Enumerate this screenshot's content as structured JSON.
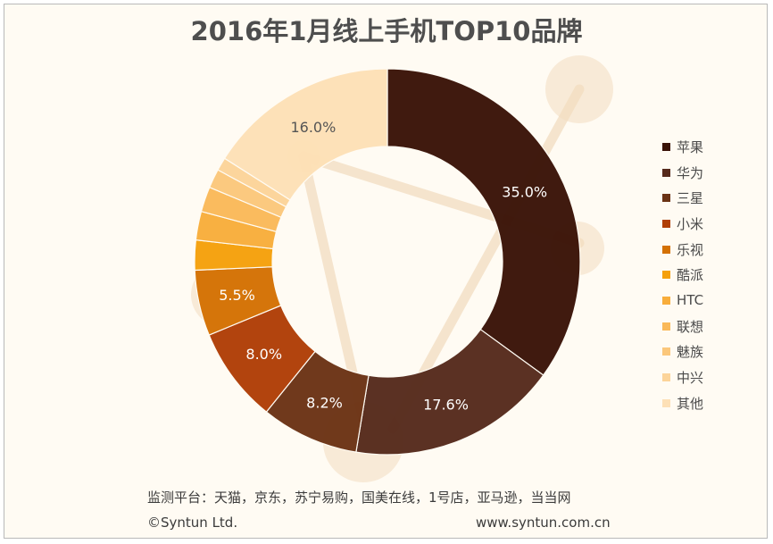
{
  "chart_data": {
    "type": "pie",
    "title": "2016年1月线上手机TOP10品牌",
    "categories": [
      "苹果",
      "华为",
      "三星",
      "小米",
      "乐视",
      "酷派",
      "HTC",
      "联想",
      "魅族",
      "中兴",
      "其他"
    ],
    "values": [
      35.0,
      17.6,
      8.2,
      8.0,
      5.5,
      2.5,
      2.4,
      2.1,
      1.6,
      1.1,
      16.0
    ],
    "value_labels": [
      "35.0%",
      "17.6%",
      "8.2%",
      "8.0%",
      "5.5%",
      "",
      "",
      "",
      "",
      "",
      "16.0%"
    ],
    "colors": [
      "#3a1307",
      "#562a1c",
      "#6b3315",
      "#b03e06",
      "#d47103",
      "#f5a00b",
      "#f8ad3b",
      "#fab959",
      "#fbc77b",
      "#fcd499",
      "#fde0b6"
    ],
    "legend_position": "right"
  },
  "footer": {
    "source": "监测平台：天猫，京东，苏宁易购，国美在线，1号店，亚马逊，当当网",
    "copyright": "©Syntun Ltd.",
    "website": "www.syntun.com.cn"
  }
}
